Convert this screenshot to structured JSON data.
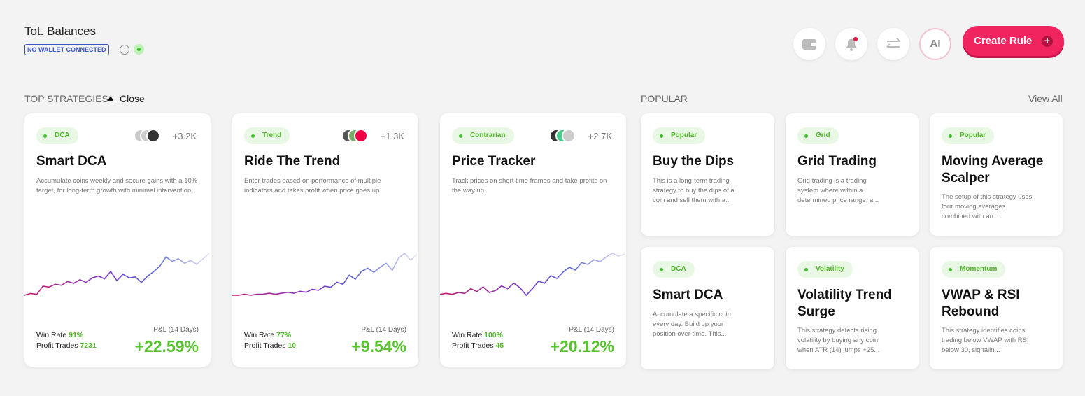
{
  "header": {
    "title": "Tot. Balances",
    "wallet_badge": "NO WALLET CONNECTED",
    "ai_button": "AI",
    "create_button": "Create Rule"
  },
  "top_strategies": {
    "label": "TOP STRATEGIES",
    "toggle": "Close",
    "cards": [
      {
        "tag": "DCA",
        "followers": "+3.2K",
        "title": "Smart DCA",
        "description": "Accumulate coins weekly and secure gains with a 10% target, for long-term growth with minimal intervention.",
        "win_rate_label": "Win Rate",
        "win_rate": "91%",
        "profit_trades_label": "Profit Trades",
        "profit_trades": "7231",
        "pnl_label": "P&L (14 Days)",
        "pnl": "+22.59%",
        "sparkline": [
          10,
          12,
          11,
          20,
          19,
          22,
          21,
          25,
          23,
          27,
          24,
          29,
          31,
          28,
          36,
          26,
          33,
          29,
          30,
          24,
          31,
          36,
          42,
          52,
          47,
          50,
          45,
          48,
          44,
          50,
          56
        ]
      },
      {
        "tag": "Trend",
        "followers": "+1.3K",
        "title": "Ride The Trend",
        "description": "Enter trades based on performance of multiple indicators and takes profit when price goes up.",
        "win_rate_label": "Win Rate",
        "win_rate": "77%",
        "profit_trades_label": "Profit Trades",
        "profit_trades": "10",
        "pnl_label": "P&L (14 Days)",
        "pnl": "+9.54%",
        "sparkline": [
          20,
          20,
          21,
          20,
          21,
          21,
          22,
          21,
          22,
          23,
          22,
          24,
          23,
          26,
          25,
          29,
          28,
          33,
          31,
          40,
          36,
          44,
          47,
          43,
          48,
          52,
          45,
          57,
          62,
          55,
          61
        ]
      },
      {
        "tag": "Contrarian",
        "followers": "+2.7K",
        "title": "Price Tracker",
        "description": "Track prices on short time frames and take profits on the way up.",
        "win_rate_label": "Win Rate",
        "win_rate": "100%",
        "profit_trades_label": "Profit Trades",
        "profit_trades": "45",
        "pnl_label": "P&L (14 Days)",
        "pnl": "+20.12%",
        "sparkline": [
          18,
          19,
          18,
          20,
          19,
          24,
          21,
          26,
          20,
          22,
          27,
          24,
          30,
          25,
          17,
          24,
          32,
          30,
          38,
          35,
          42,
          47,
          44,
          52,
          50,
          55,
          53,
          58,
          62,
          59,
          61
        ]
      }
    ]
  },
  "popular": {
    "label": "POPULAR",
    "view_all": "View All",
    "cards": [
      {
        "tag": "Popular",
        "title": "Buy the Dips",
        "description": "This is a long-term trading strategy to buy the dips of a coin and sell them with a..."
      },
      {
        "tag": "Grid",
        "title": "Grid Trading",
        "description": "Grid trading is a trading system where within a determined price range, a..."
      },
      {
        "tag": "Popular",
        "title": "Moving Average Scalper",
        "description": "The setup of this strategy uses four moving averages combined with an..."
      },
      {
        "tag": "DCA",
        "title": "Smart DCA",
        "description": "Accumulate a specific coin every day. Build up your position over time. This..."
      },
      {
        "tag": "Volatility",
        "title": "Volatility Trend Surge",
        "description": "This strategy detects rising volatility by buying any coin when ATR (14) jumps +25..."
      },
      {
        "tag": "Momentum",
        "title": "VWAP & RSI Rebound",
        "description": "This strategy identifies coins trading below VWAP with RSI below 30, signalin..."
      }
    ]
  }
}
